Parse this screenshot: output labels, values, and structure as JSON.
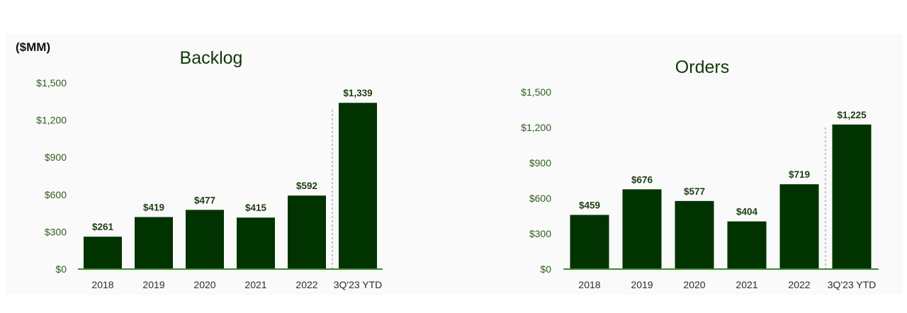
{
  "unit_label": "($MM)",
  "colors": {
    "bar": "#003300",
    "axis": "#3c8a2e",
    "separator": "#8a8a8a"
  },
  "chart_data": [
    {
      "type": "bar",
      "title": "Backlog",
      "categories": [
        "2018",
        "2019",
        "2020",
        "2021",
        "2022",
        "3Q'23 YTD"
      ],
      "values": [
        261,
        419,
        477,
        415,
        592,
        1339
      ],
      "data_labels": [
        "$261",
        "$419",
        "$477",
        "$415",
        "$592",
        "$1,339"
      ],
      "yticks": [
        "$0",
        "$300",
        "$600",
        "$900",
        "$1,200",
        "$1,500"
      ],
      "ylim": [
        0,
        1500
      ],
      "grid": false,
      "separator_before_index": 5
    },
    {
      "type": "bar",
      "title": "Orders",
      "categories": [
        "2018",
        "2019",
        "2020",
        "2021",
        "2022",
        "3Q'23 YTD"
      ],
      "values": [
        459,
        676,
        577,
        404,
        719,
        1225
      ],
      "data_labels": [
        "$459",
        "$676",
        "$577",
        "$404",
        "$719",
        "$1,225"
      ],
      "yticks": [
        "$0",
        "$300",
        "$600",
        "$900",
        "$1,200",
        "$1,500"
      ],
      "ylim": [
        0,
        1500
      ],
      "grid": false,
      "separator_before_index": 5
    }
  ]
}
